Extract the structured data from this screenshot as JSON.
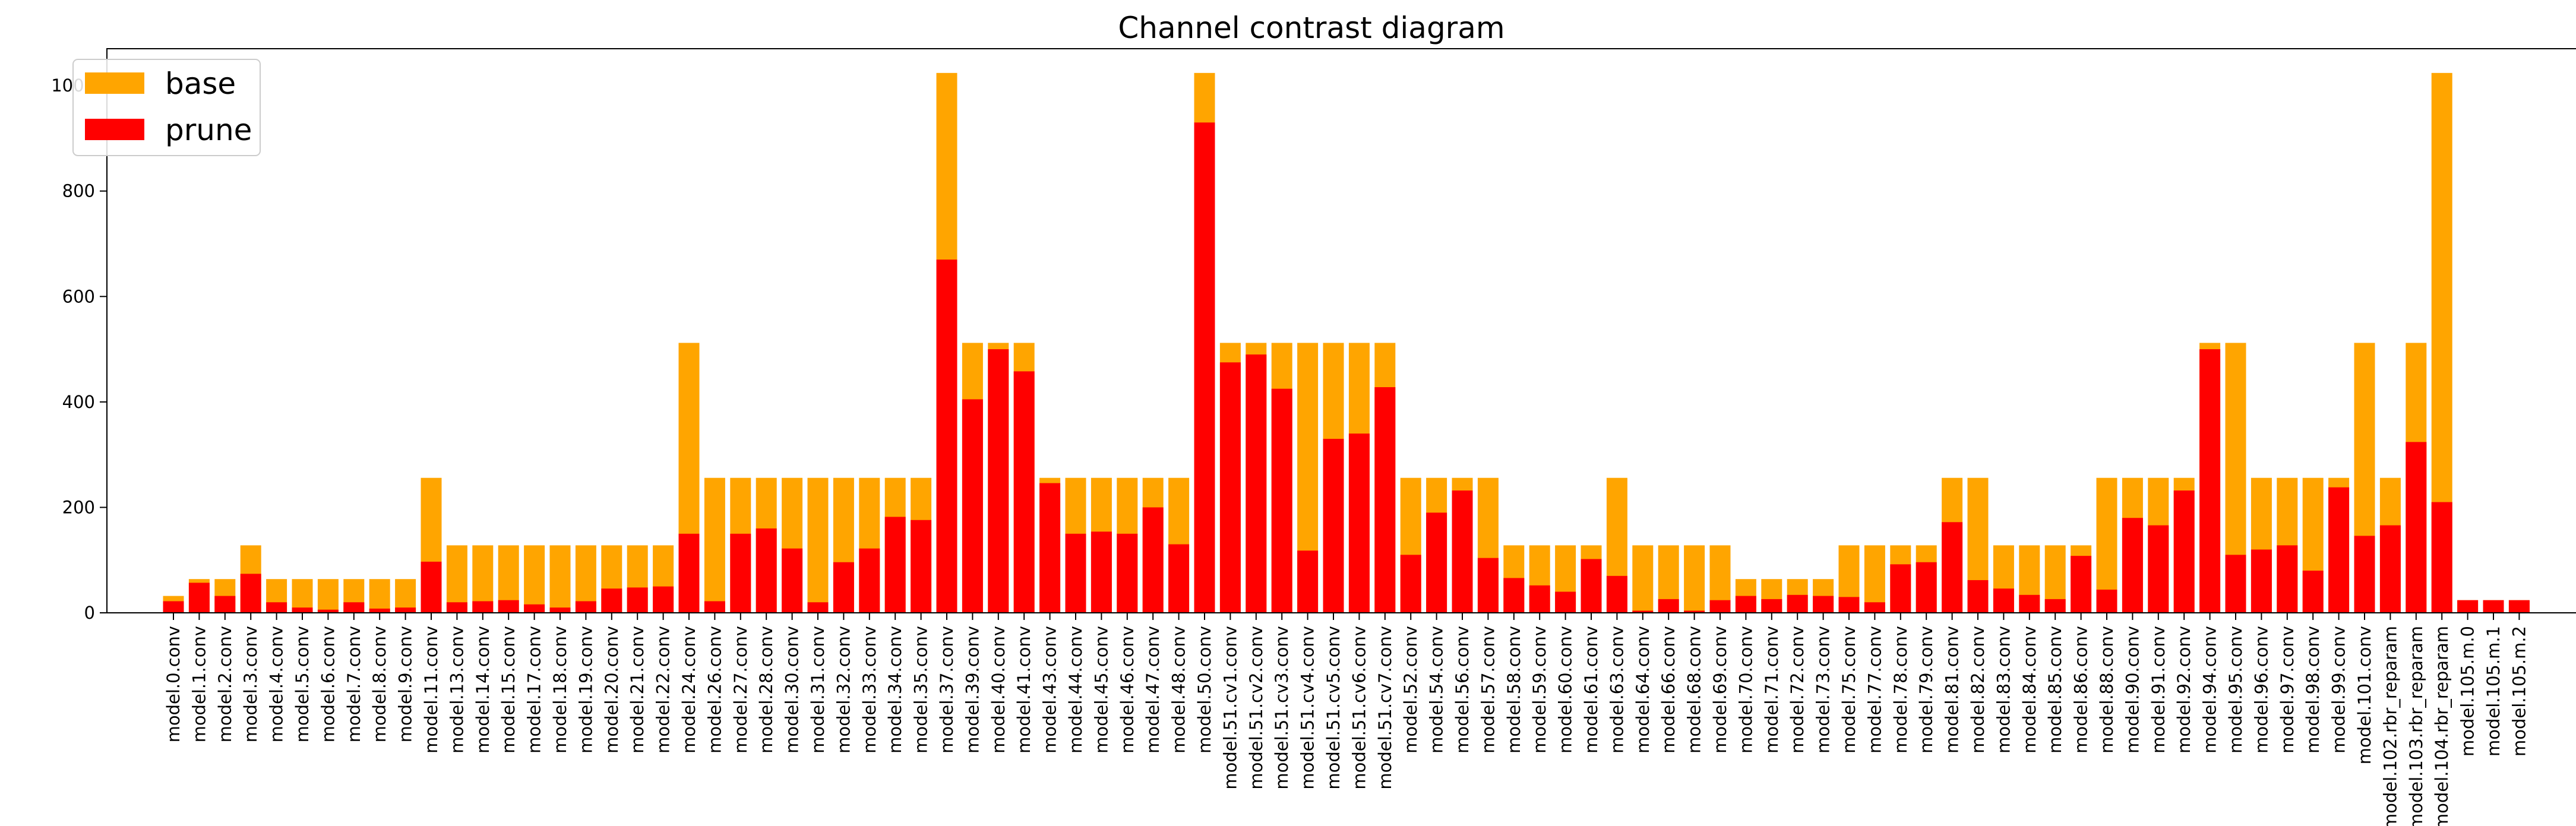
{
  "chart_data": {
    "type": "bar",
    "title": "Channel contrast diagram",
    "xlabel": "",
    "ylabel": "",
    "ylim": [
      0,
      1070
    ],
    "yticks": [
      0,
      200,
      400,
      600,
      800,
      1000
    ],
    "grid": false,
    "legend_position": "top-left",
    "categories": [
      "model.0.conv",
      "model.1.conv",
      "model.2.conv",
      "model.3.conv",
      "model.4.conv",
      "model.5.conv",
      "model.6.conv",
      "model.7.conv",
      "model.8.conv",
      "model.9.conv",
      "model.11.conv",
      "model.13.conv",
      "model.14.conv",
      "model.15.conv",
      "model.17.conv",
      "model.18.conv",
      "model.19.conv",
      "model.20.conv",
      "model.21.conv",
      "model.22.conv",
      "model.24.conv",
      "model.26.conv",
      "model.27.conv",
      "model.28.conv",
      "model.30.conv",
      "model.31.conv",
      "model.32.conv",
      "model.33.conv",
      "model.34.conv",
      "model.35.conv",
      "model.37.conv",
      "model.39.conv",
      "model.40.conv",
      "model.41.conv",
      "model.43.conv",
      "model.44.conv",
      "model.45.conv",
      "model.46.conv",
      "model.47.conv",
      "model.48.conv",
      "model.50.conv",
      "model.51.cv1.conv",
      "model.51.cv2.conv",
      "model.51.cv3.conv",
      "model.51.cv4.conv",
      "model.51.cv5.conv",
      "model.51.cv6.conv",
      "model.51.cv7.conv",
      "model.52.conv",
      "model.54.conv",
      "model.56.conv",
      "model.57.conv",
      "model.58.conv",
      "model.59.conv",
      "model.60.conv",
      "model.61.conv",
      "model.63.conv",
      "model.64.conv",
      "model.66.conv",
      "model.68.conv",
      "model.69.conv",
      "model.70.conv",
      "model.71.conv",
      "model.72.conv",
      "model.73.conv",
      "model.75.conv",
      "model.77.conv",
      "model.78.conv",
      "model.79.conv",
      "model.81.conv",
      "model.82.conv",
      "model.83.conv",
      "model.84.conv",
      "model.85.conv",
      "model.86.conv",
      "model.88.conv",
      "model.90.conv",
      "model.91.conv",
      "model.92.conv",
      "model.94.conv",
      "model.95.conv",
      "model.96.conv",
      "model.97.conv",
      "model.98.conv",
      "model.99.conv",
      "model.101.conv",
      "model.102.rbr_reparam",
      "model.103.rbr_reparam",
      "model.104.rbr_reparam",
      "model.105.m.0",
      "model.105.m.1",
      "model.105.m.2"
    ],
    "series": [
      {
        "name": "base",
        "color": "#ffa500",
        "values": [
          32,
          64,
          64,
          128,
          64,
          64,
          64,
          64,
          64,
          64,
          256,
          128,
          128,
          128,
          128,
          128,
          128,
          128,
          128,
          128,
          512,
          256,
          256,
          256,
          256,
          256,
          256,
          256,
          256,
          256,
          1024,
          512,
          512,
          512,
          256,
          256,
          256,
          256,
          256,
          256,
          1024,
          512,
          512,
          512,
          512,
          512,
          512,
          512,
          256,
          256,
          256,
          256,
          128,
          128,
          128,
          128,
          256,
          128,
          128,
          128,
          128,
          64,
          64,
          64,
          64,
          128,
          128,
          128,
          128,
          256,
          256,
          128,
          128,
          128,
          128,
          256,
          256,
          256,
          256,
          512,
          512,
          256,
          256,
          256,
          256,
          512,
          256,
          512,
          1024,
          24,
          24,
          24
        ]
      },
      {
        "name": "prune",
        "color": "#ff0000",
        "values": [
          22,
          57,
          32,
          74,
          20,
          10,
          6,
          20,
          8,
          10,
          97,
          20,
          22,
          24,
          16,
          10,
          22,
          46,
          48,
          50,
          150,
          22,
          150,
          160,
          122,
          20,
          96,
          122,
          182,
          176,
          670,
          405,
          500,
          458,
          246,
          150,
          154,
          150,
          200,
          130,
          930,
          475,
          490,
          425,
          118,
          330,
          340,
          428,
          110,
          190,
          232,
          104,
          66,
          52,
          40,
          102,
          70,
          4,
          26,
          4,
          24,
          32,
          26,
          34,
          32,
          30,
          20,
          92,
          96,
          172,
          62,
          46,
          34,
          26,
          108,
          44,
          180,
          166,
          232,
          500,
          110,
          120,
          128,
          80,
          238,
          146,
          166,
          324,
          210,
          24,
          24,
          24
        ]
      }
    ]
  }
}
